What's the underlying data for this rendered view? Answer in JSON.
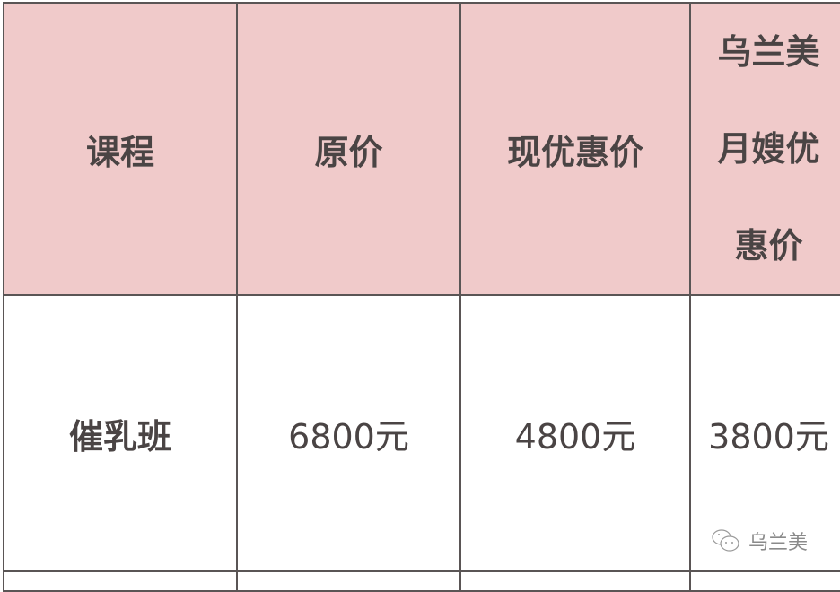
{
  "table": {
    "headers": [
      "课程",
      "原价",
      "现优惠价",
      "乌兰美月嫂优惠价"
    ],
    "header_lines_last": [
      "乌兰美",
      "月嫂优",
      "惠价"
    ],
    "rows": [
      {
        "course": "催乳班",
        "original_price": "6800元",
        "discount_price": "4800元",
        "member_price": "3800元"
      }
    ]
  },
  "watermark": {
    "icon": "wechat-icon",
    "text": "乌兰美"
  },
  "colors": {
    "header_bg": "#f0caca",
    "border": "#5a5555",
    "text": "#4a4444"
  }
}
